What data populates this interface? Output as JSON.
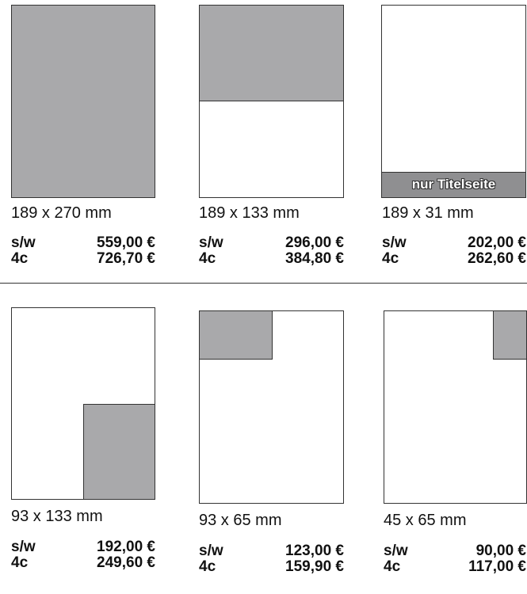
{
  "formats": [
    {
      "size": "189 x 270 mm",
      "bw_label": "s/w",
      "bw_price": "559,00 €",
      "color_label": "4c",
      "color_price": "726,70 €"
    },
    {
      "size": "189 x 133 mm",
      "bw_label": "s/w",
      "bw_price": "296,00 €",
      "color_label": "4c",
      "color_price": "384,80 €"
    },
    {
      "size": "189 x 31 mm",
      "bw_label": "s/w",
      "bw_price": "202,00 €",
      "color_label": "4c",
      "color_price": "262,60 €",
      "note": "nur Titelseite"
    },
    {
      "size": "93 x 133 mm",
      "bw_label": "s/w",
      "bw_price": "192,00 €",
      "color_label": "4c",
      "color_price": "249,60 €"
    },
    {
      "size": "93 x 65 mm",
      "bw_label": "s/w",
      "bw_price": "123,00 €",
      "color_label": "4c",
      "color_price": "159,90 €"
    },
    {
      "size": "45 x 65 mm",
      "bw_label": "s/w",
      "bw_price": "90,00 €",
      "color_label": "4c",
      "color_price": "117,00 €"
    }
  ],
  "colors": {
    "ad_fill": "#a9a9ab",
    "note_band": "#8f8f91",
    "outline": "#333333"
  }
}
